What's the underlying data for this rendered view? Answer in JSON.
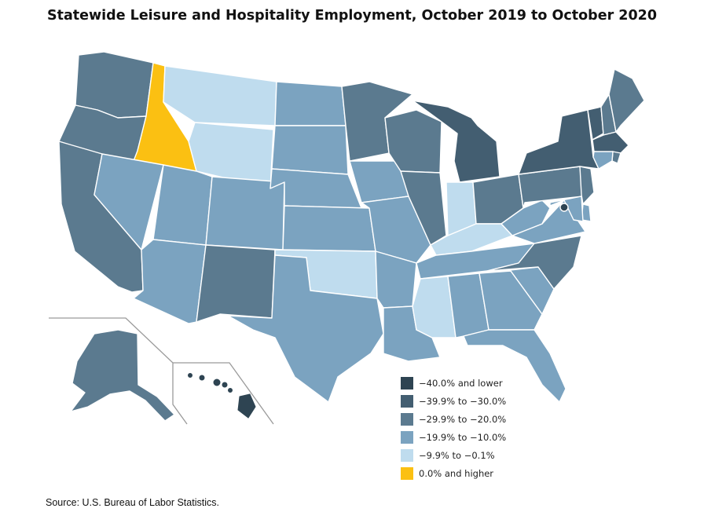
{
  "title": "Statewide Leisure and Hospitality Employment, October 2019 to October 2020",
  "source": "Source: U.S. Bureau of Labor Statistics.",
  "colors": {
    "c1": "#2e4452",
    "c2": "#435e71",
    "c3": "#5b7a8f",
    "c4": "#7ba3c0",
    "c5": "#bfdcee",
    "c6": "#fbc012"
  },
  "legend": [
    {
      "key": "c1",
      "label": "−40.0% and lower"
    },
    {
      "key": "c2",
      "label": "−39.9% to −30.0%"
    },
    {
      "key": "c3",
      "label": "−29.9% to −20.0%"
    },
    {
      "key": "c4",
      "label": "−19.9% to −10.0%"
    },
    {
      "key": "c5",
      "label": "−9.9% to −0.1%"
    },
    {
      "key": "c6",
      "label": "0.0% and higher"
    }
  ],
  "states": {
    "WA": "c3",
    "OR": "c3",
    "CA": "c3",
    "ID": "c6",
    "MT": "c5",
    "WY": "c5",
    "NV": "c4",
    "UT": "c4",
    "CO": "c4",
    "AZ": "c4",
    "NM": "c3",
    "ND": "c4",
    "SD": "c4",
    "NE": "c4",
    "KS": "c4",
    "OK": "c5",
    "TX": "c4",
    "MN": "c3",
    "IA": "c4",
    "MO": "c4",
    "AR": "c4",
    "LA": "c4",
    "WI": "c3",
    "IL": "c3",
    "MI": "c2",
    "IN": "c5",
    "KY": "c5",
    "OH": "c3",
    "TN": "c4",
    "MS": "c5",
    "AL": "c4",
    "GA": "c4",
    "FL": "c4",
    "SC": "c4",
    "NC": "c3",
    "VA": "c4",
    "WV": "c4",
    "PA": "c3",
    "NY": "c2",
    "VT": "c2",
    "NH": "c3",
    "ME": "c3",
    "MA": "c2",
    "RI": "c3",
    "CT": "c4",
    "NJ": "c3",
    "DE": "c4",
    "MD": "c4",
    "DC": "c1",
    "AK": "c3",
    "HI": "c1"
  }
}
